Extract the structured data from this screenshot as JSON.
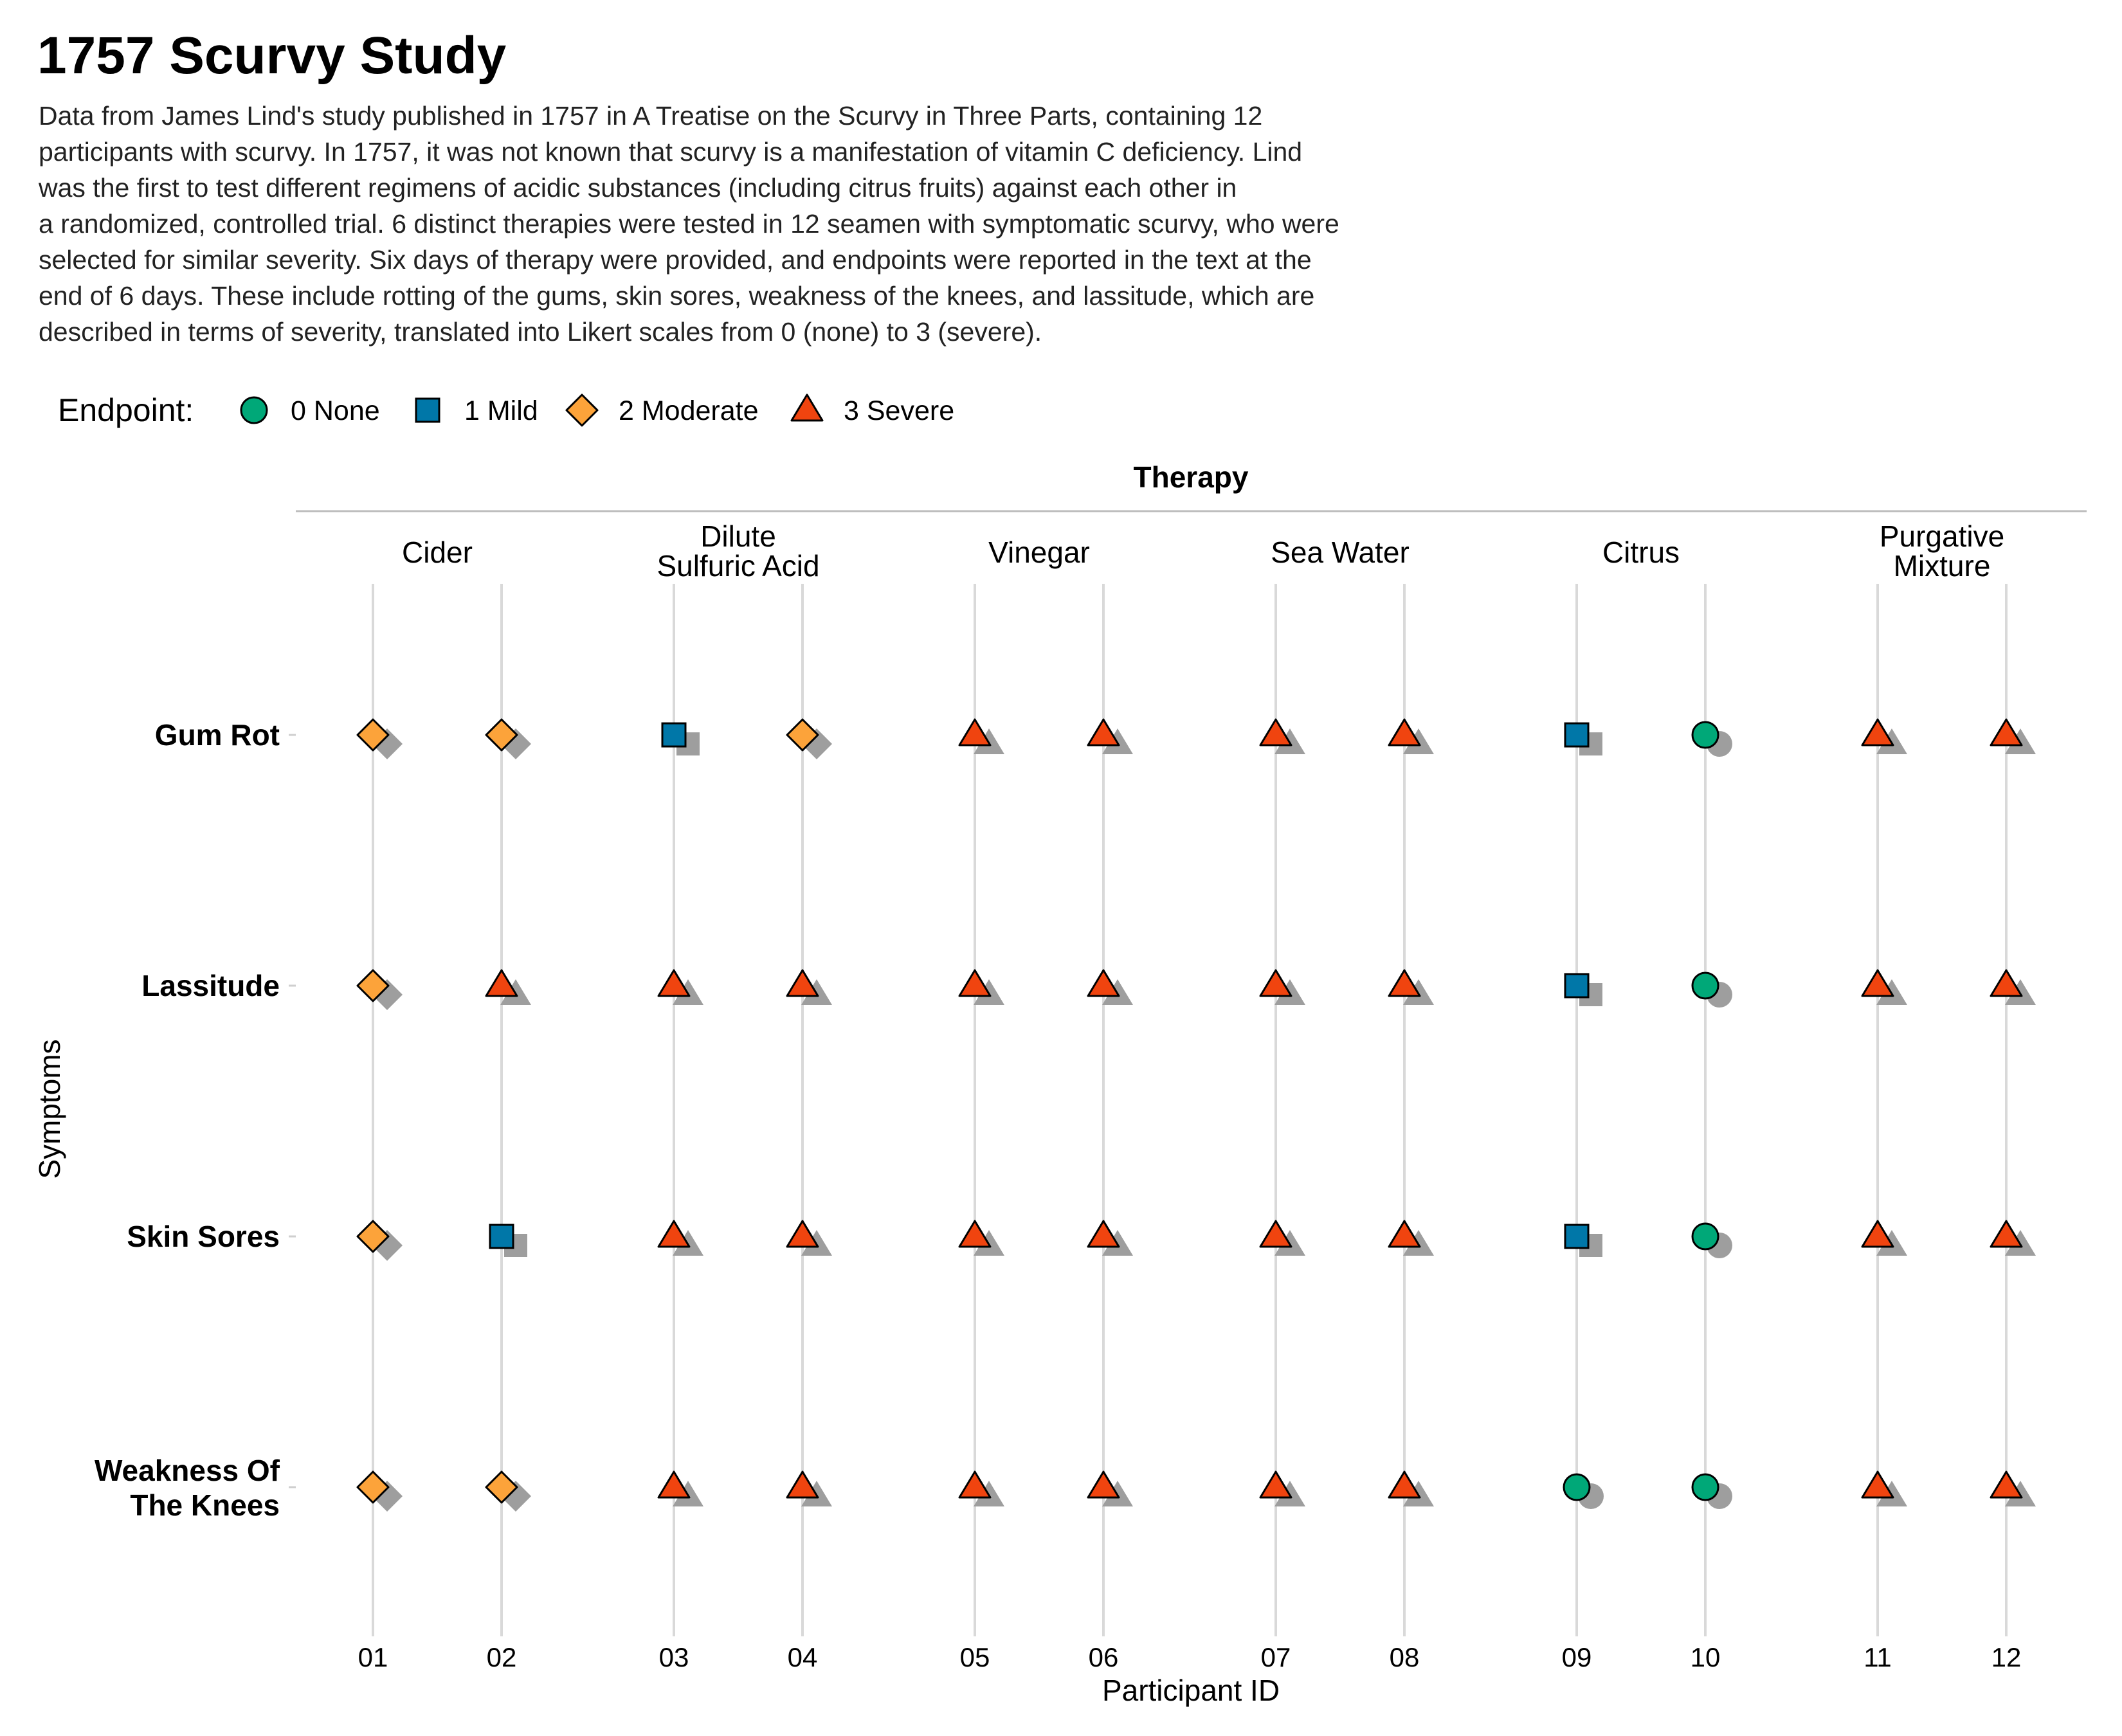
{
  "chart_data": {
    "type": "scatter",
    "title": "1757 Scurvy Study",
    "subtitle_lines": [
      "Data from James Lind's study published in 1757 in A Treatise on the Scurvy in Three Parts, containing 12",
      "participants with scurvy. In 1757, it was not known that scurvy is a manifestation of vitamin C deficiency. Lind",
      "was the first to test different regimens of acidic substances (including citrus fruits) against each other in",
      "a randomized, controlled trial. 6 distinct therapies were tested in 12 seamen with symptomatic scurvy, who were",
      "selected for similar severity. Six days of therapy were provided, and endpoints were reported in the text at the",
      "end of 6 days. These include rotting of the gums, skin sores, weakness of the knees, and lassitude, which are",
      "described in terms of severity, translated into Likert scales from 0 (none) to 3 (severe)."
    ],
    "legend": {
      "title": "Endpoint:",
      "placement": "top-left",
      "items": [
        {
          "level": 0,
          "label": "0 None",
          "shape": "circle",
          "color": "#00A878"
        },
        {
          "level": 1,
          "label": "1 Mild",
          "shape": "square",
          "color": "#0077A8"
        },
        {
          "level": 2,
          "label": "2 Moderate",
          "shape": "diamond",
          "color": "#FCA33A"
        },
        {
          "level": 3,
          "label": "3 Severe",
          "shape": "triangle",
          "color": "#F0440F"
        }
      ]
    },
    "facet_title": "Therapy",
    "xlabel": "Participant ID",
    "ylabel": "Symptoms",
    "therapies": [
      {
        "label_lines": [
          "Cider"
        ],
        "participants": [
          "01",
          "02"
        ]
      },
      {
        "label_lines": [
          "Dilute",
          "Sulfuric Acid"
        ],
        "participants": [
          "03",
          "04"
        ]
      },
      {
        "label_lines": [
          "Vinegar"
        ],
        "participants": [
          "05",
          "06"
        ]
      },
      {
        "label_lines": [
          "Sea Water"
        ],
        "participants": [
          "07",
          "08"
        ]
      },
      {
        "label_lines": [
          "Citrus"
        ],
        "participants": [
          "09",
          "10"
        ]
      },
      {
        "label_lines": [
          "Purgative",
          "Mixture"
        ],
        "participants": [
          "11",
          "12"
        ]
      }
    ],
    "symptoms": [
      {
        "label_lines": [
          "Gum Rot"
        ]
      },
      {
        "label_lines": [
          "Lassitude"
        ]
      },
      {
        "label_lines": [
          "Skin Sores"
        ]
      },
      {
        "label_lines": [
          "Weakness Of",
          "The Knees"
        ]
      }
    ],
    "participants": [
      "01",
      "02",
      "03",
      "04",
      "05",
      "06",
      "07",
      "08",
      "09",
      "10",
      "11",
      "12"
    ],
    "values": [
      [
        2,
        2,
        1,
        2,
        3,
        3,
        3,
        3,
        1,
        0,
        3,
        3
      ],
      [
        2,
        3,
        3,
        3,
        3,
        3,
        3,
        3,
        1,
        0,
        3,
        3
      ],
      [
        2,
        1,
        3,
        3,
        3,
        3,
        3,
        3,
        1,
        0,
        3,
        3
      ],
      [
        2,
        2,
        3,
        3,
        3,
        3,
        3,
        3,
        0,
        0,
        3,
        3
      ]
    ],
    "colors": {
      "shadow": "#9E9E9E",
      "gridline": "#D9D9D9",
      "marker_outline": "#000000"
    }
  }
}
